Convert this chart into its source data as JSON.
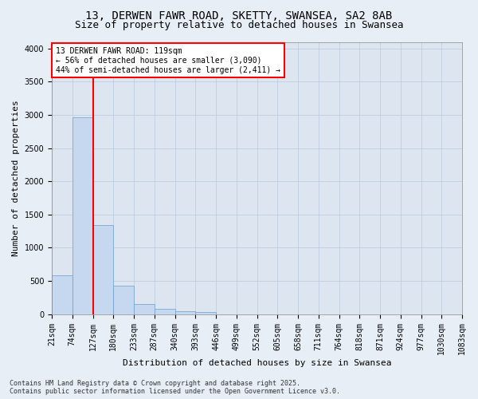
{
  "title_line1": "13, DERWEN FAWR ROAD, SKETTY, SWANSEA, SA2 8AB",
  "title_line2": "Size of property relative to detached houses in Swansea",
  "xlabel": "Distribution of detached houses by size in Swansea",
  "ylabel": "Number of detached properties",
  "bar_values": [
    580,
    2970,
    1340,
    430,
    155,
    75,
    40,
    30,
    0,
    0,
    0,
    0,
    0,
    0,
    0,
    0,
    0,
    0,
    0,
    0
  ],
  "bin_labels": [
    "21sqm",
    "74sqm",
    "127sqm",
    "180sqm",
    "233sqm",
    "287sqm",
    "340sqm",
    "393sqm",
    "446sqm",
    "499sqm",
    "552sqm",
    "605sqm",
    "658sqm",
    "711sqm",
    "764sqm",
    "818sqm",
    "871sqm",
    "924sqm",
    "977sqm",
    "1030sqm",
    "1083sqm"
  ],
  "bar_color": "#c5d8f0",
  "bar_edge_color": "#6b9ec8",
  "vline_color": "red",
  "annotation_text": "13 DERWEN FAWR ROAD: 119sqm\n← 56% of detached houses are smaller (3,090)\n44% of semi-detached houses are larger (2,411) →",
  "bg_color": "#e8eef6",
  "plot_bg_color": "#dde6f0",
  "ylim": [
    0,
    4100
  ],
  "yticks": [
    0,
    500,
    1000,
    1500,
    2000,
    2500,
    3000,
    3500,
    4000
  ],
  "footer_line1": "Contains HM Land Registry data © Crown copyright and database right 2025.",
  "footer_line2": "Contains public sector information licensed under the Open Government Licence v3.0.",
  "grid_color": "#b8c8dc",
  "title_fontsize": 10,
  "subtitle_fontsize": 9,
  "axis_label_fontsize": 8,
  "tick_fontsize": 7,
  "annot_fontsize": 7,
  "footer_fontsize": 6
}
